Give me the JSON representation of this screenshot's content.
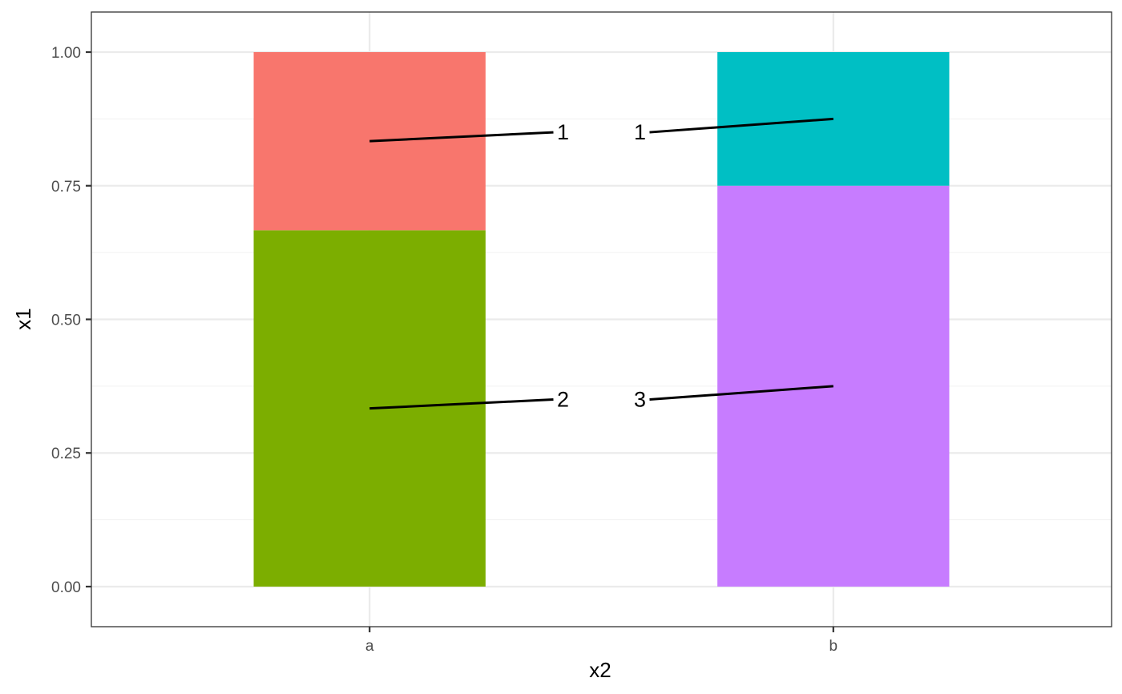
{
  "chart_data": {
    "type": "bar",
    "stacked": true,
    "xlabel": "x2",
    "ylabel": "x1",
    "categories": [
      "a",
      "b"
    ],
    "ylim": [
      -0.075,
      1.075
    ],
    "yticks": [
      0.0,
      0.25,
      0.5,
      0.75,
      1.0
    ],
    "ytick_labels": [
      "0.00",
      "0.25",
      "0.50",
      "0.75",
      "1.00"
    ],
    "grid": true,
    "legend": "none",
    "segments": [
      {
        "category": "a",
        "y0": 0.0,
        "y1": 0.6667,
        "color": "#7CAE00",
        "label": "2"
      },
      {
        "category": "a",
        "y0": 0.6667,
        "y1": 1.0,
        "color": "#F8766D",
        "label": "1"
      },
      {
        "category": "b",
        "y0": 0.0,
        "y1": 0.75,
        "color": "#C77CFF",
        "label": "3"
      },
      {
        "category": "b",
        "y0": 0.75,
        "y1": 1.0,
        "color": "#00BFC4",
        "label": "1"
      }
    ]
  }
}
